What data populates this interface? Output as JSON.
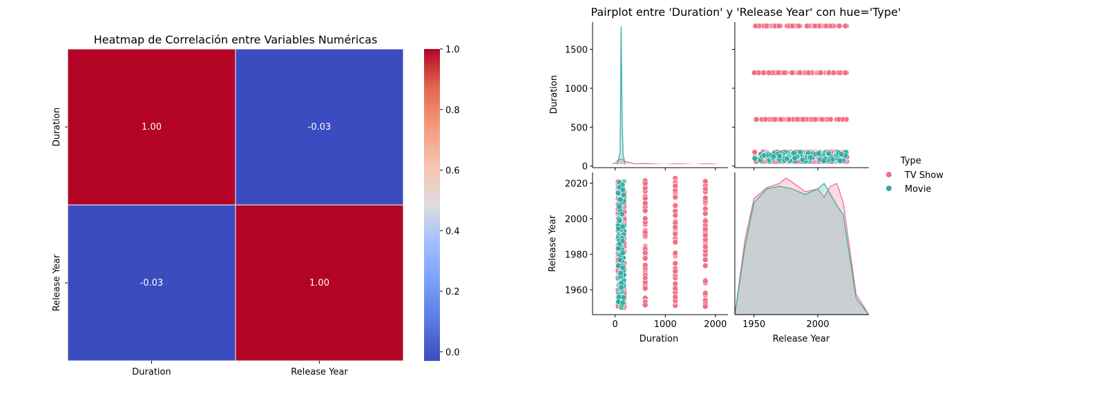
{
  "chart_data": [
    {
      "type": "heatmap",
      "title": "Heatmap de Correlación entre Variables Numéricas",
      "rows": [
        "Duration",
        "Release Year"
      ],
      "cols": [
        "Duration",
        "Release Year"
      ],
      "values": [
        [
          1.0,
          -0.03
        ],
        [
          -0.03,
          1.0
        ]
      ],
      "cell_labels": [
        [
          "1.00",
          "-0.03"
        ],
        [
          "-0.03",
          "1.00"
        ]
      ],
      "colormap": "coolwarm",
      "colorbar": {
        "range": [
          -0.03,
          1.0
        ],
        "ticks": [
          0.0,
          0.2,
          0.4,
          0.6,
          0.8,
          1.0
        ],
        "tick_labels": [
          "0.0",
          "0.2",
          "0.4",
          "0.6",
          "0.8",
          "1.0"
        ]
      }
    },
    {
      "type": "scatter",
      "title": "Pairplot entre 'Duration' y 'Release Year' con hue='Type'",
      "variables": [
        "Duration",
        "Release Year"
      ],
      "hue": "Type",
      "legend_title": "Type",
      "legend_position": "right",
      "series": [
        {
          "name": "TV Show",
          "color": "#f07089"
        },
        {
          "name": "Movie",
          "color": "#36ada4"
        }
      ],
      "axes": {
        "Duration": {
          "range": [
            -450,
            2250
          ],
          "ticks": [
            0,
            1000,
            2000
          ],
          "tick_labels": [
            "0",
            "1000",
            "2000"
          ]
        },
        "Duration_y": {
          "range": [
            -20,
            1850
          ],
          "ticks": [
            0,
            500,
            1000,
            1500
          ],
          "tick_labels": [
            "0",
            "500",
            "1000",
            "1500"
          ]
        },
        "Release Year": {
          "range": [
            1935,
            2040
          ],
          "ticks": [
            1950,
            2000
          ],
          "tick_labels": [
            "1950",
            "2000"
          ]
        },
        "Release Year_y": {
          "range": [
            1946,
            2026
          ],
          "ticks": [
            1960,
            1980,
            2000,
            2020
          ],
          "tick_labels": [
            "1960",
            "1980",
            "2000",
            "2020"
          ]
        }
      },
      "tv_show_durations": [
        60,
        120,
        180,
        600,
        1200,
        1800
      ],
      "movie_duration_range": [
        60,
        180
      ],
      "release_year_range": [
        1950,
        2023
      ],
      "duration_kde": {
        "x": [
          -300,
          -100,
          0,
          50,
          100,
          120,
          140,
          160,
          200,
          400,
          600,
          800,
          1000,
          1200,
          1400,
          1600,
          1800,
          2000,
          2150
        ],
        "movie": [
          0,
          0,
          5,
          40,
          180,
          1790,
          600,
          150,
          20,
          0,
          0,
          0,
          0,
          0,
          0,
          0,
          0,
          0,
          0
        ],
        "tv_show": [
          0,
          10,
          40,
          70,
          85,
          90,
          88,
          80,
          60,
          30,
          35,
          25,
          20,
          30,
          25,
          20,
          30,
          25,
          0
        ]
      },
      "year_kde": {
        "x": [
          1935,
          1943,
          1950,
          1960,
          1970,
          1975,
          1980,
          1990,
          2000,
          2005,
          2010,
          2015,
          2020,
          2030,
          2040
        ],
        "tv_show": [
          0,
          0.55,
          0.85,
          0.93,
          0.96,
          1.0,
          0.97,
          0.9,
          0.92,
          0.86,
          0.94,
          0.96,
          0.82,
          0.15,
          0
        ],
        "movie": [
          0,
          0.5,
          0.82,
          0.92,
          0.94,
          0.93,
          0.92,
          0.88,
          0.92,
          0.96,
          0.88,
          0.8,
          0.73,
          0.12,
          0
        ]
      }
    }
  ]
}
